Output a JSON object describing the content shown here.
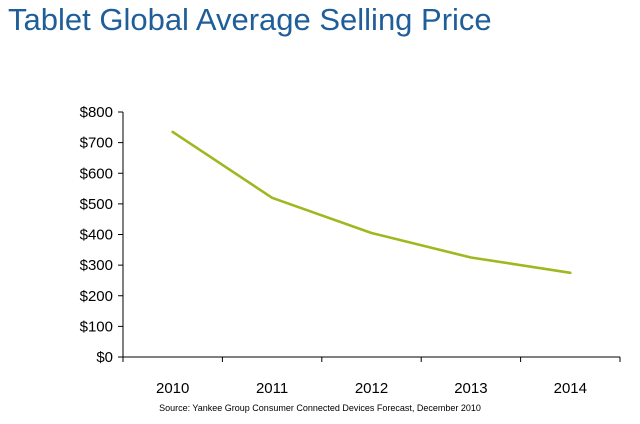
{
  "title": "Tablet Global Average Selling Price",
  "source": "Source: Yankee Group Consumer Connected Devices Forecast, December 2010",
  "chart_data": {
    "type": "line",
    "title": "Tablet Global Average Selling Price",
    "xlabel": "",
    "ylabel": "",
    "categories": [
      "2010",
      "2011",
      "2012",
      "2013",
      "2014"
    ],
    "series": [
      {
        "values": [
          735,
          520,
          405,
          325,
          275
        ],
        "color": "#a0b820"
      }
    ],
    "ylim": [
      0,
      800
    ],
    "y_ticks": [
      0,
      100,
      200,
      300,
      400,
      500,
      600,
      700,
      800
    ],
    "y_tick_labels": [
      "$0",
      "$100",
      "$200",
      "$300",
      "$400",
      "$500",
      "$600",
      "$700",
      "$800"
    ],
    "grid": false,
    "legend": "none"
  }
}
